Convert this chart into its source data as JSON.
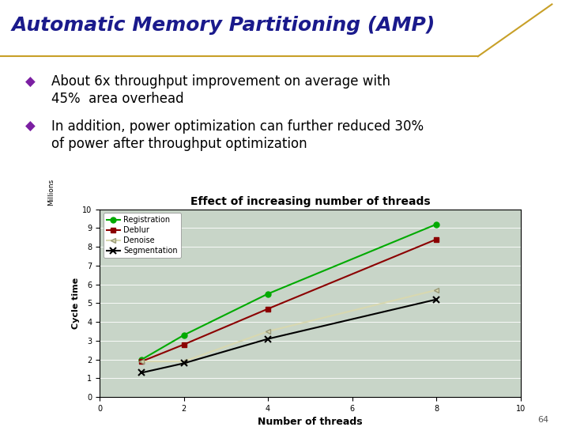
{
  "title": "Automatic Memory Partitioning (AMP)",
  "title_color": "#1a1a8c",
  "bullet1_line1": "About 6x throughput improvement on average with",
  "bullet1_line2": "45%  area overhead",
  "bullet2_line1": "In addition, power optimization can further reduced 30%",
  "bullet2_line2": "of power after throughput optimization",
  "chart_title": "Effect of increasing number of threads",
  "xlabel": "Number of threads",
  "ylabel": "Cycle time",
  "ylabel2": "Millions",
  "xlim": [
    0,
    10
  ],
  "ylim": [
    0,
    10
  ],
  "xticks": [
    0,
    2,
    4,
    6,
    8,
    10
  ],
  "yticks": [
    0,
    1,
    2,
    3,
    4,
    5,
    6,
    7,
    8,
    9,
    10
  ],
  "threads": [
    1,
    2,
    4,
    8
  ],
  "registration": [
    2.0,
    3.3,
    5.5,
    9.2
  ],
  "deblur": [
    1.9,
    2.8,
    4.7,
    8.4
  ],
  "denoise": [
    1.9,
    1.9,
    3.5,
    5.7
  ],
  "segmentation": [
    1.3,
    1.8,
    3.1,
    5.2
  ],
  "reg_color": "#00aa00",
  "deblur_color": "#8b0000",
  "denoise_color": "#d8d8b0",
  "seg_color": "#000000",
  "chart_bg": "#c8d5c8",
  "slide_bg": "#ffffff",
  "page_number": "64",
  "bullet_color": "#7b1fa2",
  "text_color": "#000000",
  "divider_color": "#c8a028"
}
